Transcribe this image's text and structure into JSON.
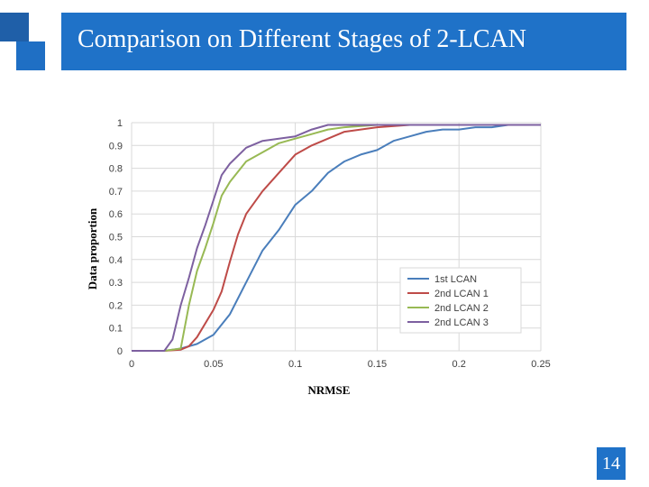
{
  "slide": {
    "title": "Comparison on Different Stages of  2-LCAN",
    "page_number": "14",
    "accent_color": "#1f72c8"
  },
  "chart_data": {
    "type": "line",
    "title": "",
    "xlabel": "NRMSE",
    "ylabel": "Data proportion",
    "xlim": [
      0,
      0.25
    ],
    "ylim": [
      0,
      1
    ],
    "xticks": [
      0,
      0.05,
      0.1,
      0.15,
      0.2,
      0.25
    ],
    "xtick_labels": [
      "0",
      "0.05",
      "0.1",
      "0.15",
      "0.2",
      "0.25"
    ],
    "yticks": [
      0,
      0.1,
      0.2,
      0.3,
      0.4,
      0.5,
      0.6,
      0.7,
      0.8,
      0.9,
      1
    ],
    "ytick_labels": [
      "0",
      "0.1",
      "0.2",
      "0.3",
      "0.4",
      "0.5",
      "0.6",
      "0.7",
      "0.8",
      "0.9",
      "1"
    ],
    "grid": true,
    "legend_position": "bottom-right",
    "series": [
      {
        "name": "1st LCAN",
        "color": "#4a7ebb",
        "points": [
          [
            0,
            0
          ],
          [
            0.02,
            0
          ],
          [
            0.03,
            0.01
          ],
          [
            0.04,
            0.03
          ],
          [
            0.05,
            0.07
          ],
          [
            0.06,
            0.16
          ],
          [
            0.07,
            0.3
          ],
          [
            0.08,
            0.44
          ],
          [
            0.09,
            0.53
          ],
          [
            0.1,
            0.64
          ],
          [
            0.11,
            0.7
          ],
          [
            0.12,
            0.78
          ],
          [
            0.13,
            0.83
          ],
          [
            0.14,
            0.86
          ],
          [
            0.15,
            0.88
          ],
          [
            0.16,
            0.92
          ],
          [
            0.17,
            0.94
          ],
          [
            0.18,
            0.96
          ],
          [
            0.19,
            0.97
          ],
          [
            0.2,
            0.97
          ],
          [
            0.21,
            0.98
          ],
          [
            0.22,
            0.98
          ],
          [
            0.23,
            0.99
          ],
          [
            0.25,
            0.99
          ]
        ]
      },
      {
        "name": "2nd LCAN 1",
        "color": "#be4b48",
        "points": [
          [
            0,
            0
          ],
          [
            0.02,
            0
          ],
          [
            0.03,
            0.005
          ],
          [
            0.035,
            0.02
          ],
          [
            0.04,
            0.06
          ],
          [
            0.05,
            0.18
          ],
          [
            0.055,
            0.26
          ],
          [
            0.06,
            0.39
          ],
          [
            0.065,
            0.51
          ],
          [
            0.07,
            0.6
          ],
          [
            0.08,
            0.7
          ],
          [
            0.09,
            0.78
          ],
          [
            0.1,
            0.86
          ],
          [
            0.11,
            0.9
          ],
          [
            0.12,
            0.93
          ],
          [
            0.13,
            0.96
          ],
          [
            0.14,
            0.97
          ],
          [
            0.15,
            0.98
          ],
          [
            0.17,
            0.99
          ],
          [
            0.25,
            0.99
          ]
        ]
      },
      {
        "name": "2nd LCAN 2",
        "color": "#98b954",
        "points": [
          [
            0,
            0
          ],
          [
            0.02,
            0
          ],
          [
            0.03,
            0.01
          ],
          [
            0.035,
            0.2
          ],
          [
            0.04,
            0.35
          ],
          [
            0.045,
            0.45
          ],
          [
            0.05,
            0.56
          ],
          [
            0.055,
            0.68
          ],
          [
            0.06,
            0.74
          ],
          [
            0.07,
            0.83
          ],
          [
            0.08,
            0.87
          ],
          [
            0.09,
            0.91
          ],
          [
            0.1,
            0.93
          ],
          [
            0.11,
            0.95
          ],
          [
            0.12,
            0.97
          ],
          [
            0.13,
            0.98
          ],
          [
            0.15,
            0.99
          ],
          [
            0.25,
            0.99
          ]
        ]
      },
      {
        "name": "2nd LCAN 3",
        "color": "#7d60a0",
        "points": [
          [
            0,
            0
          ],
          [
            0.02,
            0
          ],
          [
            0.025,
            0.05
          ],
          [
            0.03,
            0.2
          ],
          [
            0.035,
            0.32
          ],
          [
            0.04,
            0.45
          ],
          [
            0.045,
            0.55
          ],
          [
            0.05,
            0.66
          ],
          [
            0.055,
            0.77
          ],
          [
            0.06,
            0.82
          ],
          [
            0.07,
            0.89
          ],
          [
            0.08,
            0.92
          ],
          [
            0.09,
            0.93
          ],
          [
            0.1,
            0.94
          ],
          [
            0.11,
            0.97
          ],
          [
            0.12,
            0.99
          ],
          [
            0.25,
            0.99
          ]
        ]
      }
    ]
  }
}
